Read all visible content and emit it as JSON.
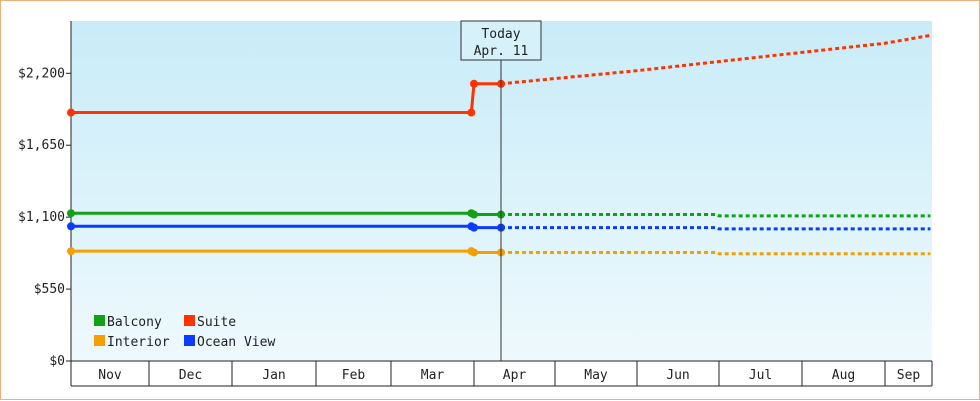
{
  "chart_data": {
    "type": "line",
    "x_axis": {
      "months": [
        "Nov",
        "Dec",
        "Jan",
        "Feb",
        "Mar",
        "Apr",
        "May",
        "Jun",
        "Jul",
        "Aug",
        "Sep"
      ]
    },
    "y_axis": {
      "ticks": [
        "$0",
        "$550",
        "$1,100",
        "$1,650",
        "$2,200"
      ],
      "tick_values": [
        0,
        550,
        1100,
        1650,
        2200
      ],
      "ylim": [
        0,
        2600
      ]
    },
    "today_marker": {
      "line1": "Today",
      "line2": "Apr. 11",
      "x": "Apr 11"
    },
    "grid": false,
    "legend_position": "bottom-left",
    "series": [
      {
        "name": "Balcony",
        "color": "#14a014",
        "historical": [
          [
            "Nov 1",
            1130
          ],
          [
            "Mar 31",
            1130
          ],
          [
            "Apr 1",
            1120
          ],
          [
            "Apr 11",
            1120
          ]
        ],
        "forecast": [
          [
            "Apr 11",
            1120
          ],
          [
            "Jun 30",
            1120
          ],
          [
            "Jul 1",
            1110
          ],
          [
            "Sep 30",
            1110
          ]
        ]
      },
      {
        "name": "Suite",
        "color": "#ff3300",
        "historical": [
          [
            "Nov 1",
            1900
          ],
          [
            "Mar 31",
            1900
          ],
          [
            "Apr 1",
            2120
          ],
          [
            "Apr 11",
            2120
          ]
        ],
        "forecast": [
          [
            "Apr 11",
            2120
          ],
          [
            "May 1",
            2160
          ],
          [
            "Jun 1",
            2220
          ],
          [
            "Jul 1",
            2290
          ],
          [
            "Aug 1",
            2360
          ],
          [
            "Sep 1",
            2430
          ],
          [
            "Sep 30",
            2490
          ]
        ]
      },
      {
        "name": "Interior",
        "color": "#f5a000",
        "historical": [
          [
            "Nov 1",
            840
          ],
          [
            "Mar 31",
            840
          ],
          [
            "Apr 1",
            830
          ],
          [
            "Apr 11",
            830
          ]
        ],
        "forecast": [
          [
            "Apr 11",
            830
          ],
          [
            "Jun 30",
            830
          ],
          [
            "Jul 1",
            820
          ],
          [
            "Sep 30",
            820
          ]
        ]
      },
      {
        "name": "Ocean View",
        "color": "#0a3cff",
        "historical": [
          [
            "Nov 1",
            1030
          ],
          [
            "Mar 31",
            1030
          ],
          [
            "Apr 1",
            1020
          ],
          [
            "Apr 11",
            1020
          ]
        ],
        "forecast": [
          [
            "Apr 11",
            1020
          ],
          [
            "Jun 30",
            1020
          ],
          [
            "Jul 1",
            1010
          ],
          [
            "Sep 30",
            1010
          ]
        ]
      }
    ],
    "legend_order": [
      "Balcony",
      "Suite",
      "Interior",
      "Ocean View"
    ]
  }
}
